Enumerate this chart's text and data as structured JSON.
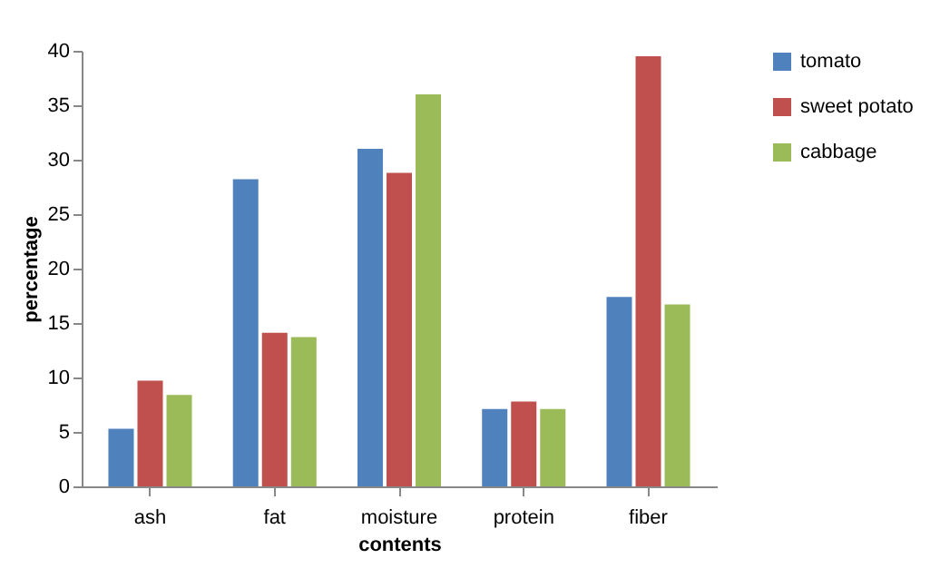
{
  "chart_data": {
    "type": "bar",
    "xlabel": "contents",
    "ylabel": "percentage",
    "categories": [
      "ash",
      "fat",
      "moisture",
      "protein",
      "fiber"
    ],
    "series": [
      {
        "name": "tomato",
        "color": "#4f81bd",
        "values": [
          5.3,
          28.2,
          31,
          7.1,
          17.4
        ]
      },
      {
        "name": "sweet potato",
        "color": "#c0504d",
        "values": [
          9.7,
          14.1,
          28.8,
          7.8,
          39.5
        ]
      },
      {
        "name": "cabbage",
        "color": "#9bbb59",
        "values": [
          8.4,
          13.7,
          36,
          7.1,
          16.7
        ]
      }
    ],
    "ylim": [
      0,
      40
    ],
    "yticks": [
      0,
      5,
      10,
      15,
      20,
      25,
      30,
      35,
      40
    ],
    "grid": false,
    "legend": "right"
  }
}
